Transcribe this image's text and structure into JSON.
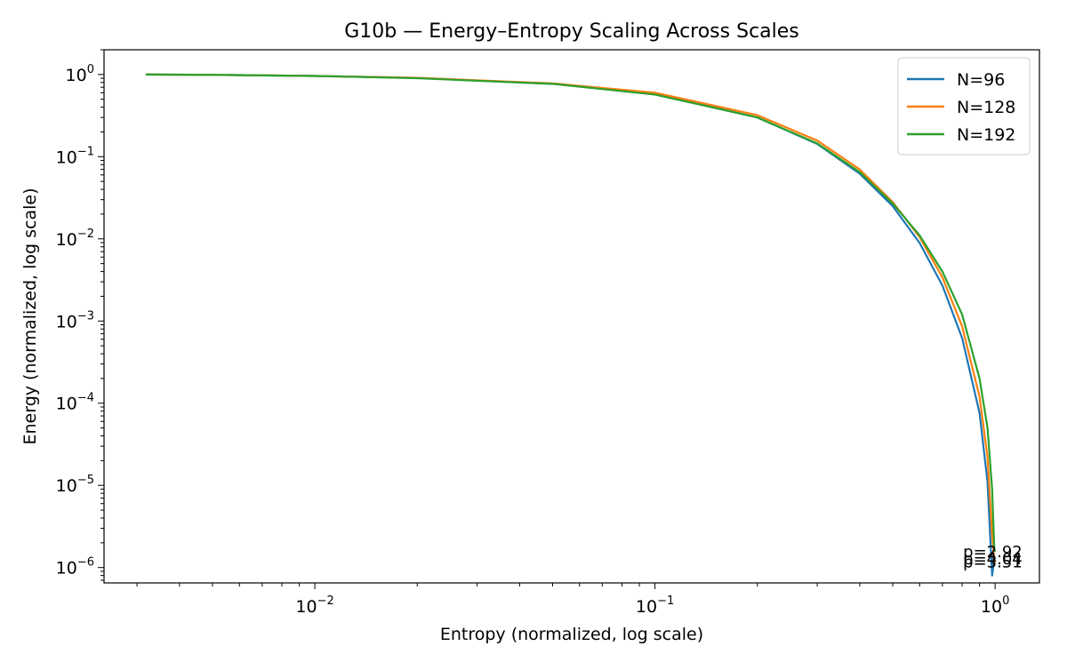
{
  "chart_data": {
    "type": "line",
    "title": "G10b — Energy–Entropy Scaling Across Scales",
    "xlabel": "Entropy (normalized, log scale)",
    "ylabel": "Energy (normalized, log scale)",
    "xscale": "log",
    "yscale": "log",
    "xlim": [
      0.0024,
      1.35
    ],
    "ylim": [
      6.5e-07,
      2.0
    ],
    "grid": false,
    "legend_position": "top-right",
    "x_ticks": [
      {
        "value": 0.01,
        "base": "10",
        "exp": "−2"
      },
      {
        "value": 0.1,
        "base": "10",
        "exp": "−1"
      },
      {
        "value": 1,
        "base": "10",
        "exp": "0"
      }
    ],
    "y_ticks": [
      {
        "value": 1,
        "base": "10",
        "exp": "0"
      },
      {
        "value": 0.1,
        "base": "10",
        "exp": "−1"
      },
      {
        "value": 0.01,
        "base": "10",
        "exp": "−2"
      },
      {
        "value": 0.001,
        "base": "10",
        "exp": "−3"
      },
      {
        "value": 0.0001,
        "base": "10",
        "exp": "−4"
      },
      {
        "value": 1e-05,
        "base": "10",
        "exp": "−5"
      },
      {
        "value": 1e-06,
        "base": "10",
        "exp": "−6"
      }
    ],
    "series": [
      {
        "name": "N=96",
        "color": "#1f77b4",
        "x": [
          0.0032,
          0.005,
          0.01,
          0.02,
          0.05,
          0.1,
          0.2,
          0.3,
          0.4,
          0.5,
          0.6,
          0.7,
          0.8,
          0.9,
          0.95,
          0.98,
          0.995,
          1.0
        ],
        "y": [
          1.0,
          0.99,
          0.96,
          0.91,
          0.77,
          0.58,
          0.3,
          0.143,
          0.062,
          0.025,
          0.0089,
          0.0027,
          0.00062,
          7.6e-05,
          1.1e-05,
          8e-07,
          1.3e-06,
          1.3e-06
        ],
        "end_label": "p=4.04"
      },
      {
        "name": "N=128",
        "color": "#ff7f0e",
        "x": [
          0.0032,
          0.005,
          0.01,
          0.02,
          0.05,
          0.1,
          0.2,
          0.3,
          0.4,
          0.5,
          0.6,
          0.7,
          0.8,
          0.9,
          0.95,
          0.98,
          0.995,
          1.0
        ],
        "y": [
          1.0,
          0.99,
          0.96,
          0.91,
          0.78,
          0.6,
          0.32,
          0.157,
          0.07,
          0.028,
          0.0105,
          0.0034,
          0.00086,
          0.00012,
          2.2e-05,
          2.5e-06,
          1.2e-06,
          1.2e-06
        ],
        "end_label": "p=3.51"
      },
      {
        "name": "N=192",
        "color": "#2ca02c",
        "x": [
          0.0032,
          0.005,
          0.01,
          0.02,
          0.05,
          0.1,
          0.2,
          0.3,
          0.4,
          0.5,
          0.6,
          0.7,
          0.8,
          0.9,
          0.95,
          0.98,
          0.995,
          1.0
        ],
        "y": [
          1.0,
          0.99,
          0.96,
          0.9,
          0.77,
          0.57,
          0.3,
          0.145,
          0.065,
          0.027,
          0.011,
          0.004,
          0.0012,
          0.0002,
          5e-05,
          9e-06,
          1.6e-06,
          1.6e-06
        ],
        "end_label": "p=2.92"
      }
    ]
  }
}
